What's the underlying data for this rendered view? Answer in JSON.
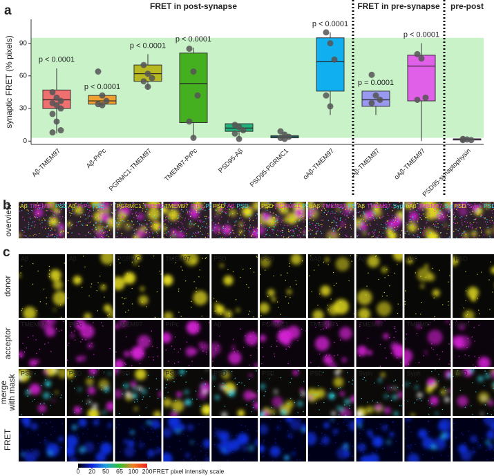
{
  "panel_labels": {
    "a": "a",
    "b": "b",
    "c": "c"
  },
  "chart_data": {
    "type": "box",
    "ylabel": "synaptic FRET (% pixels)",
    "ylim": [
      -3,
      112
    ],
    "yticks": [
      0,
      30,
      60,
      90
    ],
    "shaded_range": [
      3,
      95
    ],
    "shaded_color": "#c9f2c9",
    "point_color": "#555555",
    "groups": [
      {
        "label": "FRET in post-synapse",
        "categories": [
          {
            "name": "Aβ-TMEM97",
            "color": "#f07070",
            "box": [
              7,
              30,
              38,
              47,
              67
            ],
            "points": [
              45,
              40,
              37,
              35,
              33,
              30,
              25,
              18,
              10,
              8
            ],
            "annotation": "p < 0.0001"
          },
          {
            "name": "Aβ-PrPc",
            "color": "#f0a030",
            "box": [
              32,
              34,
              37,
              42,
              42
            ],
            "points": [
              64,
              42,
              37,
              34,
              33
            ],
            "annotation": "p < 0.0001"
          },
          {
            "name": "PGRMC1-TMEM97",
            "color": "#b8b820",
            "box": [
              48,
              55,
              62,
              70,
              80
            ],
            "points": [
              70,
              62,
              58,
              55,
              50
            ],
            "annotation": "p < 0.0001"
          },
          {
            "name": "TMEM97-PrPc",
            "color": "#44b020",
            "box": [
              2,
              17,
              53,
              81,
              86
            ],
            "points": [
              85,
              64,
              42,
              18,
              3
            ],
            "annotation": "p < 0.0001"
          },
          {
            "name": "PSD95-Aβ",
            "color": "#20b07a",
            "box": [
              2,
              9,
              12,
              16,
              16
            ],
            "points": [
              15,
              13,
              10,
              7,
              2
            ],
            "annotation": null
          },
          {
            "name": "PSD95-PGRMC1",
            "color": "#20a8a8",
            "box": [
              2,
              3,
              4,
              5,
              8
            ],
            "points": [
              9,
              6,
              4,
              3,
              2
            ],
            "annotation": null
          },
          {
            "name": "oAβ-TMEM97",
            "color": "#10b0f0",
            "box": [
              24,
              46,
              73,
              95,
              100
            ],
            "points": [
              100,
              90,
              75,
              42,
              32
            ],
            "annotation": "p < 0.0001"
          }
        ]
      },
      {
        "label": "FRET in pre-synapse",
        "categories": [
          {
            "name": "Aβ-TMEM97",
            "color": "#9898f0",
            "box": [
              24,
              32,
              38,
              46,
              46
            ],
            "points": [
              61,
              42,
              38,
              35
            ],
            "annotation": "p = 0.0001"
          },
          {
            "name": "oAβ-TMEM97",
            "color": "#e060e8",
            "box": [
              0,
              37,
              69,
              79,
              90
            ],
            "points": [
              80,
              76,
              40,
              38
            ],
            "annotation": "p < 0.0001"
          }
        ]
      },
      {
        "label": "pre-post",
        "categories": [
          {
            "name": "PSD95-synaptophysin",
            "color": "#9040c0",
            "box": [
              1,
              1,
              2,
              2,
              2
            ],
            "points": [
              2,
              1.5,
              1,
              1
            ],
            "annotation": null
          }
        ]
      }
    ]
  },
  "panel_b": {
    "row_label": "overview",
    "tiles": [
      [
        {
          "text": "Aβ",
          "color": "#e8e020"
        },
        {
          "text": "TMEM97",
          "color": "#e030e0"
        },
        {
          "text": "PSD",
          "color": "#30d8e8"
        }
      ],
      [
        {
          "text": "Aβ",
          "color": "#e8e020"
        },
        {
          "text": "PrPc",
          "color": "#e030e0"
        },
        {
          "text": "PSD",
          "color": "#30d8e8"
        }
      ],
      [
        {
          "text": "PGRMC1",
          "color": "#e8e020"
        },
        {
          "text": "TMEM97",
          "color": "#e030e0"
        },
        {
          "text": "PSD",
          "color": "#30d8e8"
        }
      ],
      [
        {
          "text": "TMEM97",
          "color": "#e8e020"
        },
        {
          "text": "PrPc",
          "color": "#e030e0"
        },
        {
          "text": "PSD",
          "color": "#30d8e8"
        }
      ],
      [
        {
          "text": "PSD",
          "color": "#e8e020"
        },
        {
          "text": "Aβ",
          "color": "#e030e0"
        },
        {
          "text": "PSD",
          "color": "#30d8e8"
        }
      ],
      [
        {
          "text": "PSD",
          "color": "#e8e020"
        },
        {
          "text": "PGRMC1",
          "color": "#e030e0"
        },
        {
          "text": "PSD",
          "color": "#30d8e8"
        }
      ],
      [
        {
          "text": "oAβ",
          "color": "#e8e020"
        },
        {
          "text": "TMEM97",
          "color": "#e030e0"
        },
        {
          "text": "PSD",
          "color": "#30d8e8"
        }
      ],
      [
        {
          "text": "Aβ",
          "color": "#e8e020"
        },
        {
          "text": "TMEM97",
          "color": "#e030e0"
        },
        {
          "text": "Syph",
          "color": "#30d8e8"
        }
      ],
      [
        {
          "text": "oAβ",
          "color": "#e8e020"
        },
        {
          "text": "TMEM97",
          "color": "#e030e0"
        },
        {
          "text": "Syph",
          "color": "#30d8e8"
        }
      ],
      [
        {
          "text": "PSD",
          "color": "#e8e020"
        },
        {
          "text": "Syph",
          "color": "#e030e0"
        },
        {
          "text": "PSD",
          "color": "#30d8e8"
        }
      ]
    ]
  },
  "panel_c": {
    "rows": [
      {
        "label": [
          "donor"
        ],
        "color": "#e8e020",
        "tiles": [
          "Aβ",
          "Aβ",
          "PGRMC1",
          "TMEM97",
          "PSD",
          "PSD",
          "oAβ",
          "Aβ",
          "oAβ",
          "PSD"
        ]
      },
      {
        "label": [
          "acceptor"
        ],
        "color": "#e030e0",
        "tiles": [
          "TMEM97",
          "PrPc",
          "TMEM97",
          "PrPc",
          "Aβ",
          "PGRMC1",
          "TMEM97",
          "TMEM97",
          "TMEM97",
          "Syph"
        ]
      },
      {
        "label": [
          "merge",
          "with mask"
        ],
        "color": "#30d8e8",
        "tiles": [
          "PSD",
          "PSD",
          "PSD",
          "PSD",
          "PSD",
          "PSD",
          "PSD",
          "Syph",
          "Syph",
          "PSD"
        ]
      },
      {
        "label": [
          "FRET"
        ],
        "color": "#30d8e8",
        "tiles": [
          null,
          null,
          null,
          null,
          null,
          null,
          null,
          null,
          null,
          null
        ]
      }
    ],
    "colorbar": {
      "label": "FRET pixel intensity scale",
      "ticks": [
        {
          "value": 0,
          "color": "#000000"
        },
        {
          "value": 20,
          "color": "#1020e0"
        },
        {
          "value": 50,
          "color": "#20a0e0"
        },
        {
          "value": 65,
          "color": "#30c030"
        },
        {
          "value": 100,
          "color": "#f08020"
        },
        {
          "value": 200,
          "color": "#f02020"
        }
      ]
    }
  }
}
